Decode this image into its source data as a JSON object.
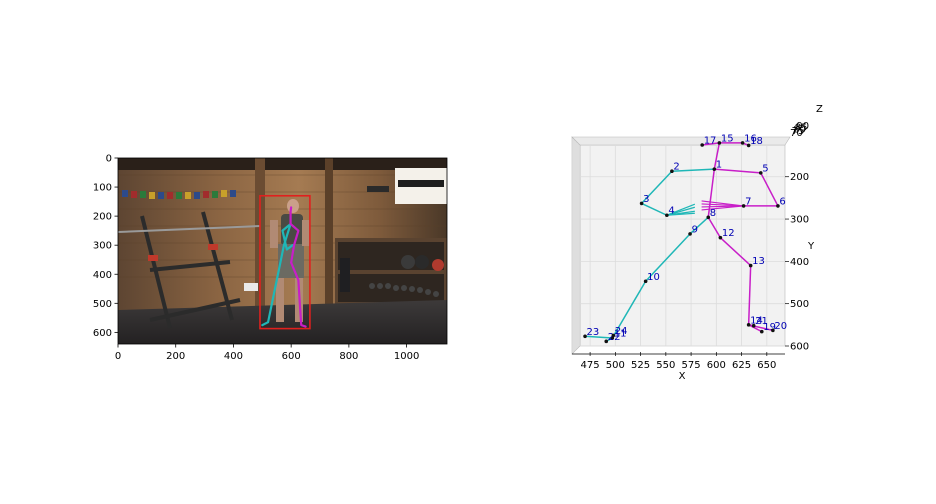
{
  "chart_data": [
    {
      "type": "image-overlay",
      "xlim": [
        0,
        1140
      ],
      "ylim": [
        640,
        0
      ],
      "xticks": [
        "0",
        "200",
        "400",
        "600",
        "800",
        "1000"
      ],
      "yticks": [
        "0",
        "100",
        "200",
        "300",
        "400",
        "500",
        "600"
      ],
      "bbox": {
        "x0": 492,
        "y0": 130,
        "x1": 665,
        "y1": 587,
        "color": "#e0201e"
      },
      "skeleton": {
        "left_color": "#1fb7b7",
        "right_color": "#c81ec8",
        "segments": [
          {
            "side": "left",
            "pts": [
              [
                598,
                227
              ],
              [
                575,
                300
              ],
              [
                548,
                430
              ],
              [
                520,
                565
              ],
              [
                500,
                575
              ]
            ]
          },
          {
            "side": "left",
            "pts": [
              [
                598,
                227
              ],
              [
                570,
                250
              ],
              [
                585,
                315
              ],
              [
                605,
                300
              ]
            ]
          },
          {
            "side": "right",
            "pts": [
              [
                598,
                227
              ],
              [
                625,
                250
              ],
              [
                610,
                300
              ],
              [
                600,
                360
              ]
            ]
          },
          {
            "side": "right",
            "pts": [
              [
                600,
                360
              ],
              [
                625,
                420
              ],
              [
                630,
                500
              ],
              [
                635,
                575
              ],
              [
                650,
                580
              ]
            ]
          },
          {
            "side": "right",
            "pts": [
              [
                598,
                227
              ],
              [
                598,
                185
              ],
              [
                600,
                170
              ]
            ]
          }
        ]
      }
    },
    {
      "type": "scatter3d",
      "xlabel": "X",
      "ylabel": "Y",
      "zlabel": "Z",
      "xticks": [
        "475",
        "500",
        "525",
        "550",
        "575",
        "600",
        "625",
        "650"
      ],
      "yticks": [
        "200",
        "300",
        "400",
        "500",
        "600"
      ],
      "zticks": [
        "70",
        "75",
        "80",
        "85",
        "90"
      ],
      "xlim": [
        465,
        668
      ],
      "ylim": [
        125,
        600
      ],
      "left_color": "#1fb7b7",
      "right_color": "#c81ec8",
      "label_color": "#0000b4",
      "joints": [
        {
          "id": "1",
          "x": 598,
          "y": 182
        },
        {
          "id": "2",
          "x": 556,
          "y": 187
        },
        {
          "id": "3",
          "x": 526,
          "y": 263
        },
        {
          "id": "4",
          "x": 551,
          "y": 291
        },
        {
          "id": "5",
          "x": 644,
          "y": 191
        },
        {
          "id": "6",
          "x": 661,
          "y": 269
        },
        {
          "id": "7",
          "x": 627,
          "y": 269
        },
        {
          "id": "8",
          "x": 592,
          "y": 296
        },
        {
          "id": "9",
          "x": 574,
          "y": 335
        },
        {
          "id": "10",
          "x": 530,
          "y": 447
        },
        {
          "id": "11",
          "x": 497,
          "y": 581
        },
        {
          "id": "12",
          "x": 604,
          "y": 344
        },
        {
          "id": "13",
          "x": 634,
          "y": 410
        },
        {
          "id": "14",
          "x": 632,
          "y": 550
        },
        {
          "id": "15",
          "x": 603,
          "y": 120
        },
        {
          "id": "16",
          "x": 626,
          "y": 120
        },
        {
          "id": "17",
          "x": 586,
          "y": 125
        },
        {
          "id": "18",
          "x": 632,
          "y": 126
        },
        {
          "id": "19",
          "x": 645,
          "y": 566
        },
        {
          "id": "20",
          "x": 656,
          "y": 563
        },
        {
          "id": "21",
          "x": 637,
          "y": 552
        },
        {
          "id": "22",
          "x": 491,
          "y": 589
        },
        {
          "id": "23",
          "x": 470,
          "y": 577
        },
        {
          "id": "24",
          "x": 498,
          "y": 575
        }
      ],
      "bones": [
        {
          "from": "1",
          "to": "2",
          "side": "left"
        },
        {
          "from": "2",
          "to": "3",
          "side": "left"
        },
        {
          "from": "3",
          "to": "4",
          "side": "left"
        },
        {
          "from": "1",
          "to": "5",
          "side": "right"
        },
        {
          "from": "5",
          "to": "6",
          "side": "right"
        },
        {
          "from": "6",
          "to": "7",
          "side": "right"
        },
        {
          "from": "1",
          "to": "8",
          "side": "right"
        },
        {
          "from": "8",
          "to": "9",
          "side": "left"
        },
        {
          "from": "9",
          "to": "10",
          "side": "left"
        },
        {
          "from": "10",
          "to": "11",
          "side": "left"
        },
        {
          "from": "11",
          "to": "22",
          "side": "left"
        },
        {
          "from": "11",
          "to": "23",
          "side": "left"
        },
        {
          "from": "11",
          "to": "24",
          "side": "left"
        },
        {
          "from": "8",
          "to": "12",
          "side": "right"
        },
        {
          "from": "12",
          "to": "13",
          "side": "right"
        },
        {
          "from": "13",
          "to": "14",
          "side": "right"
        },
        {
          "from": "14",
          "to": "19",
          "side": "right"
        },
        {
          "from": "14",
          "to": "20",
          "side": "right"
        },
        {
          "from": "14",
          "to": "21",
          "side": "right"
        },
        {
          "from": "1",
          "to": "15",
          "side": "right"
        },
        {
          "from": "15",
          "to": "16",
          "side": "right"
        },
        {
          "from": "15",
          "to": "17",
          "side": "right"
        },
        {
          "from": "16",
          "to": "18",
          "side": "right"
        }
      ]
    }
  ]
}
